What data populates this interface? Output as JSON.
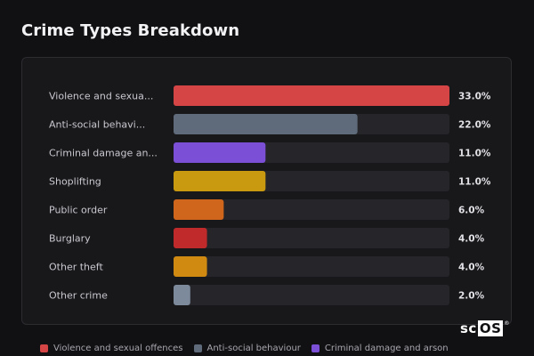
{
  "title": "Crime Types Breakdown",
  "logo": {
    "prefix": "sc",
    "boxed": "OS",
    "mark": "®"
  },
  "chart_data": {
    "type": "bar",
    "orientation": "horizontal",
    "categories": [
      "Violence and sexua...",
      "Anti-social behavi...",
      "Criminal damage an...",
      "Shoplifting",
      "Public order",
      "Burglary",
      "Other theft",
      "Other crime"
    ],
    "values": [
      33.0,
      22.0,
      11.0,
      11.0,
      6.0,
      4.0,
      4.0,
      2.0
    ],
    "value_labels": [
      "33.0%",
      "22.0%",
      "11.0%",
      "11.0%",
      "6.0%",
      "4.0%",
      "4.0%",
      "2.0%"
    ],
    "colors": [
      "#d64545",
      "#5f6b7a",
      "#7b4fd6",
      "#c99a10",
      "#d0661c",
      "#c02a2a",
      "#d08a12",
      "#7d8a9c"
    ],
    "track_color": "#25252a",
    "xlim": [
      0,
      33
    ],
    "grid": false
  },
  "legend": [
    {
      "label": "Violence and sexual offences",
      "color": "#d64545"
    },
    {
      "label": "Anti-social behaviour",
      "color": "#5f6b7a"
    },
    {
      "label": "Criminal damage and arson",
      "color": "#7b4fd6"
    }
  ]
}
